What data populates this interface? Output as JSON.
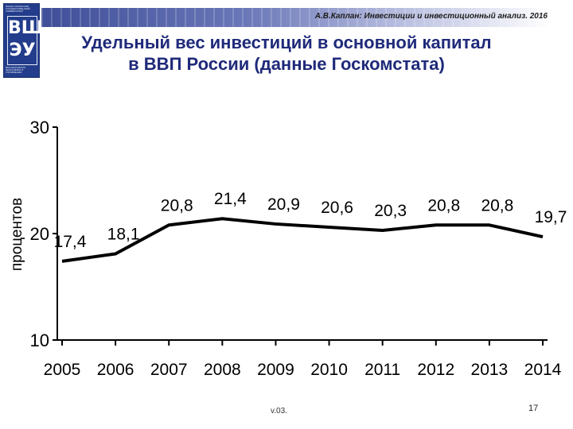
{
  "header": {
    "caption": "А.В.Каплан: Инвестиции и инвестиционный анализ. 2016"
  },
  "logo": {
    "top_text": "ЮЖНО-УРАЛЬСКИЙ ГОСУДАРСТВЕННЫЙ УНИВЕРСИТЕТ",
    "line1": "ВШ",
    "line2": "ЭУ",
    "bottom_text": "ВЫСШАЯ ШКОЛА ЭКОНОМИКИ И УПРАВЛЕНИЯ"
  },
  "title": {
    "line1": "Удельный вес инвестиций в основной капитал",
    "line2": "в ВВП России (данные Госкомстата)"
  },
  "chart_data": {
    "type": "line",
    "ylabel": "процентов",
    "ylim": [
      10,
      30
    ],
    "yticks": [
      "10",
      "20",
      "30"
    ],
    "categories": [
      "2005",
      "2006",
      "2007",
      "2008",
      "2009",
      "2010",
      "2011",
      "2012",
      "2013",
      "2014"
    ],
    "values": [
      17.4,
      18.1,
      20.8,
      21.4,
      20.9,
      20.6,
      20.3,
      20.8,
      20.8,
      19.7
    ],
    "data_labels": [
      "17,4",
      "18,1",
      "20,8",
      "21,4",
      "20,9",
      "20,6",
      "20,3",
      "20,8",
      "20,8",
      "19,7"
    ],
    "line_color": "#000000",
    "grid": false
  },
  "footer": {
    "version": "v.03.",
    "page": "17"
  }
}
